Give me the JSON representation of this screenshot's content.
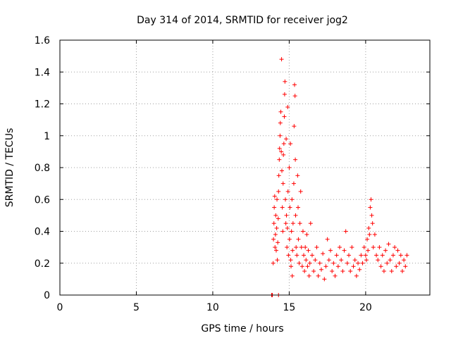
{
  "chart_data": {
    "type": "scatter",
    "title": "Day 314 of 2014, SRMTID for receiver jog2",
    "xlabel": "GPS time / hours",
    "ylabel": "SRMTID / TECUs",
    "xlim": [
      0,
      24.2
    ],
    "ylim": [
      0,
      1.6
    ],
    "grid": true,
    "marker": "+",
    "x_ticks": [
      0,
      5,
      10,
      15,
      20
    ],
    "x_tick_labels": [
      "0",
      "5",
      "10",
      "15",
      "20"
    ],
    "y_ticks": [
      0,
      0.2,
      0.4,
      0.6,
      0.8,
      1.0,
      1.2,
      1.4,
      1.6
    ],
    "y_tick_labels": [
      "0",
      "0.2",
      "0.4",
      "0.6",
      "0.8",
      "1",
      "1.2",
      "1.4",
      "1.6"
    ],
    "series": [
      {
        "name": "jog2",
        "color": "#ff0000",
        "points": [
          [
            13.85,
            0.0
          ],
          [
            13.9,
            0.0
          ],
          [
            14.3,
            0.0
          ],
          [
            13.95,
            0.2
          ],
          [
            13.97,
            0.35
          ],
          [
            14.0,
            0.45
          ],
          [
            14.02,
            0.55
          ],
          [
            14.05,
            0.62
          ],
          [
            14.07,
            0.3
          ],
          [
            14.1,
            0.38
          ],
          [
            14.12,
            0.5
          ],
          [
            14.15,
            0.28
          ],
          [
            14.18,
            0.42
          ],
          [
            14.2,
            0.6
          ],
          [
            14.22,
            0.22
          ],
          [
            14.25,
            0.33
          ],
          [
            14.28,
            0.48
          ],
          [
            14.3,
            0.65
          ],
          [
            14.32,
            0.75
          ],
          [
            14.35,
            0.85
          ],
          [
            14.37,
            0.92
          ],
          [
            14.4,
            1.0
          ],
          [
            14.42,
            1.08
          ],
          [
            14.45,
            1.15
          ],
          [
            14.48,
            0.9
          ],
          [
            14.5,
            1.48
          ],
          [
            14.52,
            0.78
          ],
          [
            14.55,
            0.55
          ],
          [
            14.58,
            0.4
          ],
          [
            14.6,
            0.7
          ],
          [
            14.62,
            0.88
          ],
          [
            14.65,
            0.95
          ],
          [
            14.68,
            1.12
          ],
          [
            14.7,
            1.26
          ],
          [
            14.72,
            1.34
          ],
          [
            14.75,
            0.6
          ],
          [
            14.78,
            0.45
          ],
          [
            14.8,
            0.98
          ],
          [
            14.82,
            0.5
          ],
          [
            14.85,
            0.3
          ],
          [
            14.88,
            0.42
          ],
          [
            14.9,
            1.18
          ],
          [
            14.92,
            0.65
          ],
          [
            14.95,
            0.25
          ],
          [
            15.0,
            0.8
          ],
          [
            15.02,
            0.35
          ],
          [
            15.05,
            0.55
          ],
          [
            15.08,
            0.95
          ],
          [
            15.1,
            0.22
          ],
          [
            15.12,
            0.18
          ],
          [
            15.15,
            0.4
          ],
          [
            15.18,
            0.6
          ],
          [
            15.2,
            0.12
          ],
          [
            15.22,
            0.28
          ],
          [
            15.25,
            0.45
          ],
          [
            15.3,
            0.7
          ],
          [
            15.32,
            1.06
          ],
          [
            15.35,
            1.32
          ],
          [
            15.38,
            1.25
          ],
          [
            15.4,
            0.85
          ],
          [
            15.42,
            0.5
          ],
          [
            15.45,
            0.3
          ],
          [
            15.5,
            0.25
          ],
          [
            15.55,
            0.75
          ],
          [
            15.58,
            0.55
          ],
          [
            15.6,
            0.35
          ],
          [
            15.65,
            0.2
          ],
          [
            15.7,
            0.45
          ],
          [
            15.75,
            0.65
          ],
          [
            15.8,
            0.3
          ],
          [
            15.85,
            0.18
          ],
          [
            15.9,
            0.4
          ],
          [
            15.95,
            0.25
          ],
          [
            16.0,
            0.15
          ],
          [
            16.05,
            0.3
          ],
          [
            16.1,
            0.22
          ],
          [
            16.15,
            0.38
          ],
          [
            16.2,
            0.18
          ],
          [
            16.25,
            0.28
          ],
          [
            16.3,
            0.12
          ],
          [
            16.35,
            0.2
          ],
          [
            16.4,
            0.45
          ],
          [
            16.5,
            0.25
          ],
          [
            16.6,
            0.15
          ],
          [
            16.7,
            0.22
          ],
          [
            16.8,
            0.3
          ],
          [
            16.9,
            0.12
          ],
          [
            17.0,
            0.2
          ],
          [
            17.1,
            0.16
          ],
          [
            17.2,
            0.26
          ],
          [
            17.3,
            0.1
          ],
          [
            17.4,
            0.18
          ],
          [
            17.5,
            0.35
          ],
          [
            17.6,
            0.22
          ],
          [
            17.7,
            0.28
          ],
          [
            17.8,
            0.15
          ],
          [
            17.9,
            0.2
          ],
          [
            18.0,
            0.12
          ],
          [
            18.1,
            0.25
          ],
          [
            18.2,
            0.18
          ],
          [
            18.3,
            0.3
          ],
          [
            18.4,
            0.22
          ],
          [
            18.5,
            0.15
          ],
          [
            18.6,
            0.28
          ],
          [
            18.7,
            0.4
          ],
          [
            18.8,
            0.2
          ],
          [
            18.9,
            0.25
          ],
          [
            19.0,
            0.15
          ],
          [
            19.1,
            0.3
          ],
          [
            19.2,
            0.18
          ],
          [
            19.3,
            0.22
          ],
          [
            19.4,
            0.12
          ],
          [
            19.5,
            0.2
          ],
          [
            19.6,
            0.16
          ],
          [
            19.7,
            0.25
          ],
          [
            19.8,
            0.2
          ],
          [
            19.9,
            0.3
          ],
          [
            20.0,
            0.25
          ],
          [
            20.05,
            0.22
          ],
          [
            20.1,
            0.35
          ],
          [
            20.15,
            0.28
          ],
          [
            20.2,
            0.42
          ],
          [
            20.25,
            0.38
          ],
          [
            20.3,
            0.55
          ],
          [
            20.35,
            0.6
          ],
          [
            20.4,
            0.5
          ],
          [
            20.45,
            0.45
          ],
          [
            20.5,
            0.3
          ],
          [
            20.6,
            0.38
          ],
          [
            20.7,
            0.25
          ],
          [
            20.8,
            0.22
          ],
          [
            20.9,
            0.3
          ],
          [
            21.0,
            0.18
          ],
          [
            21.1,
            0.25
          ],
          [
            21.2,
            0.15
          ],
          [
            21.3,
            0.28
          ],
          [
            21.4,
            0.2
          ],
          [
            21.5,
            0.32
          ],
          [
            21.6,
            0.22
          ],
          [
            21.7,
            0.15
          ],
          [
            21.8,
            0.25
          ],
          [
            21.9,
            0.3
          ],
          [
            22.0,
            0.18
          ],
          [
            22.1,
            0.28
          ],
          [
            22.2,
            0.2
          ],
          [
            22.3,
            0.25
          ],
          [
            22.4,
            0.15
          ],
          [
            22.5,
            0.22
          ],
          [
            22.6,
            0.18
          ],
          [
            22.7,
            0.25
          ]
        ]
      }
    ]
  }
}
